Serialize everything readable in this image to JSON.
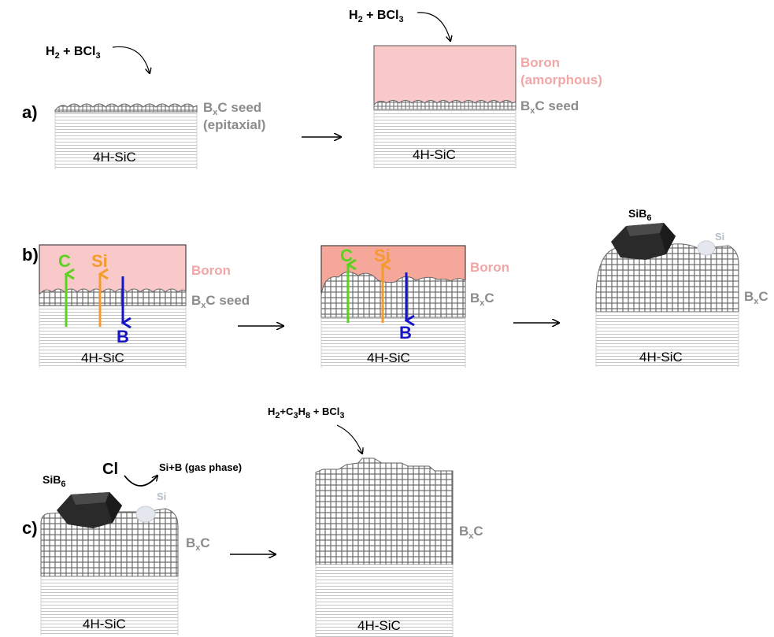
{
  "panels": {
    "a": "a)",
    "b": "b)",
    "c": "c)"
  },
  "substrate_label": "4H-SiC",
  "gas_a": {
    "h": "H",
    "h_sub": "2",
    "mid": " + BCl",
    "cl_sub": "3"
  },
  "gas_c": {
    "h": "H",
    "h_sub": "2",
    "p1": "+C",
    "c_sub": "3",
    "p2": "H",
    "h8_sub": "8",
    "p3": " + BCl",
    "cl_sub": "3"
  },
  "labels": {
    "bx": "B",
    "x_sub": "x",
    "c": "C",
    "seed": " seed",
    "epitaxial": "(epitaxial)",
    "boron": "Boron",
    "amorphous": "(amorphous)",
    "sib_si": "SiB",
    "sib_sub": "6",
    "si": "Si",
    "cl": "Cl",
    "gas_phase": "Si+B (gas phase)"
  },
  "diffusion": {
    "c": {
      "label": "C",
      "color": "#5ad21e"
    },
    "si": {
      "label": "Si",
      "color": "#f59a2c"
    },
    "b": {
      "label": "B",
      "color": "#1515c8"
    }
  },
  "colors": {
    "boron_light": "#f9c9c9",
    "boron_dark": "#f5a89a",
    "grey_text": "#8c8c8c",
    "pink_text": "#f2a6a6",
    "si_text": "#b4bcc8",
    "crystal": "#2e2e2e"
  }
}
